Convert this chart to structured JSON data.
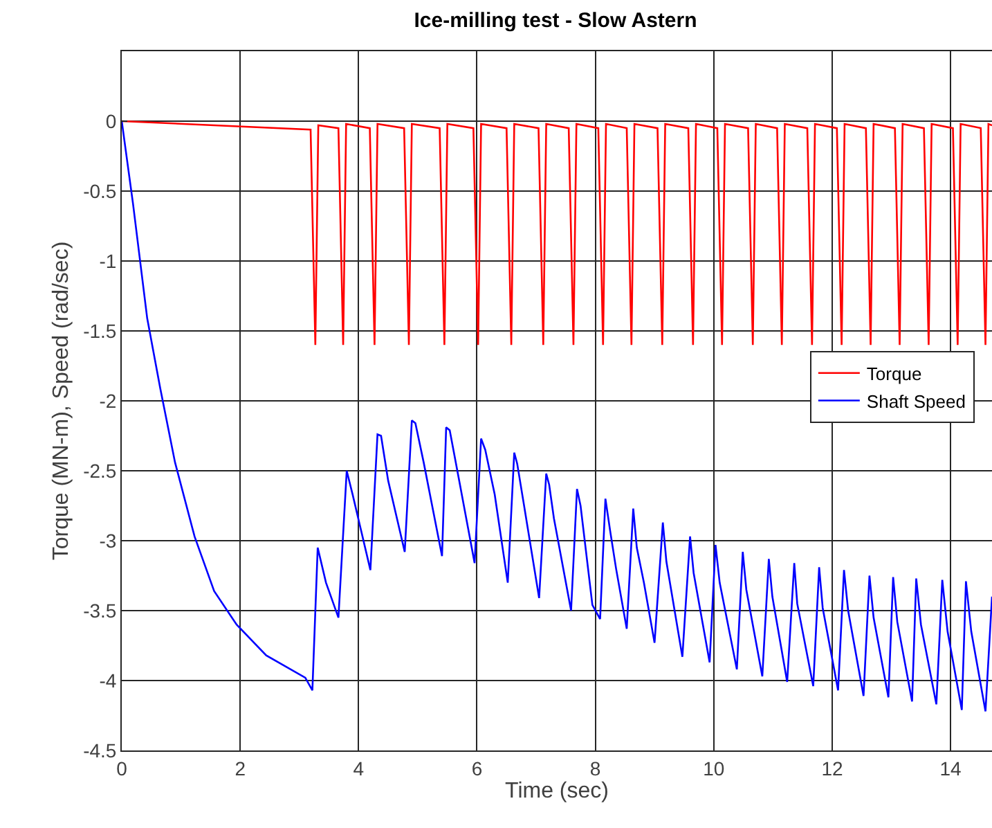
{
  "chart_data": {
    "type": "line",
    "title": "Ice-milling test - Slow Astern",
    "xlabel": "Time (sec)",
    "ylabel": "Torque (MN-m), Speed (rad/sec)",
    "xlim": [
      0,
      14.7
    ],
    "ylim": [
      -4.5,
      0.5
    ],
    "xticks": [
      0,
      2,
      4,
      6,
      8,
      10,
      12,
      14
    ],
    "yticks": [
      -4.5,
      -4,
      -3.5,
      -3,
      -2.5,
      -2,
      -1.5,
      -1,
      -0.5,
      0
    ],
    "grid": true,
    "legend": "right",
    "line_style": "solid",
    "series": [
      {
        "name": "Torque",
        "color": "#ff0000",
        "x": [
          0,
          3.19,
          3.27,
          3.32,
          3.66,
          3.74,
          3.79,
          4.19,
          4.27,
          4.32,
          4.77,
          4.85,
          4.9,
          5.37,
          5.45,
          5.5,
          5.94,
          6.02,
          6.07,
          6.5,
          6.58,
          6.63,
          7.04,
          7.12,
          7.17,
          7.55,
          7.63,
          7.68,
          8.05,
          8.13,
          8.18,
          8.53,
          8.61,
          8.66,
          9.05,
          9.13,
          9.18,
          9.57,
          9.65,
          9.7,
          10.06,
          10.14,
          10.19,
          10.58,
          10.66,
          10.71,
          11.07,
          11.15,
          11.2,
          11.58,
          11.66,
          11.71,
          12.08,
          12.16,
          12.21,
          12.57,
          12.65,
          12.7,
          13.06,
          13.14,
          13.19,
          13.55,
          13.63,
          13.68,
          14.04,
          14.12,
          14.17,
          14.51,
          14.59,
          14.64,
          14.7
        ],
        "values": [
          0,
          -0.06,
          -1.6,
          -0.03,
          -0.05,
          -1.6,
          -0.02,
          -0.05,
          -1.6,
          -0.02,
          -0.05,
          -1.6,
          -0.02,
          -0.05,
          -1.6,
          -0.02,
          -0.05,
          -1.6,
          -0.02,
          -0.05,
          -1.6,
          -0.02,
          -0.05,
          -1.6,
          -0.02,
          -0.05,
          -1.6,
          -0.02,
          -0.05,
          -1.6,
          -0.02,
          -0.05,
          -1.6,
          -0.02,
          -0.05,
          -1.6,
          -0.02,
          -0.05,
          -1.6,
          -0.02,
          -0.05,
          -1.6,
          -0.02,
          -0.05,
          -1.6,
          -0.02,
          -0.05,
          -1.6,
          -0.02,
          -0.05,
          -1.6,
          -0.02,
          -0.05,
          -1.6,
          -0.02,
          -0.05,
          -1.6,
          -0.02,
          -0.05,
          -1.6,
          -0.02,
          -0.05,
          -1.6,
          -0.02,
          -0.05,
          -1.6,
          -0.02,
          -0.05,
          -1.6,
          -0.02,
          -0.03
        ]
      },
      {
        "name": "Shaft Speed",
        "color": "#0000ff",
        "x": [
          0,
          0.19,
          0.43,
          0.65,
          0.9,
          1.23,
          1.56,
          1.94,
          2.44,
          3.1,
          3.22,
          3.31,
          3.45,
          3.66,
          3.8,
          3.9,
          4.0,
          4.2,
          4.32,
          4.38,
          4.5,
          4.78,
          4.9,
          4.96,
          5.1,
          5.41,
          5.48,
          5.54,
          5.7,
          5.96,
          6.07,
          6.14,
          6.3,
          6.52,
          6.63,
          6.68,
          6.8,
          7.05,
          7.17,
          7.22,
          7.3,
          7.59,
          7.69,
          7.75,
          7.95,
          8.08,
          8.17,
          8.25,
          8.35,
          8.53,
          8.64,
          8.7,
          8.82,
          9.0,
          9.14,
          9.2,
          9.47,
          9.6,
          9.66,
          9.93,
          10.03,
          10.1,
          10.39,
          10.49,
          10.55,
          10.82,
          10.93,
          10.99,
          11.24,
          11.36,
          11.41,
          11.68,
          11.78,
          11.84,
          12.1,
          12.2,
          12.27,
          12.53,
          12.63,
          12.7,
          12.95,
          13.03,
          13.1,
          13.35,
          13.42,
          13.5,
          13.76,
          13.86,
          13.95,
          14.19,
          14.26,
          14.35,
          14.59,
          14.7
        ],
        "values": [
          0,
          -0.59,
          -1.41,
          -1.91,
          -2.44,
          -2.97,
          -3.36,
          -3.6,
          -3.82,
          -3.98,
          -4.07,
          -3.05,
          -3.3,
          -3.55,
          -2.5,
          -2.67,
          -2.85,
          -3.21,
          -2.24,
          -2.25,
          -2.57,
          -3.08,
          -2.14,
          -2.16,
          -2.44,
          -3.11,
          -2.19,
          -2.21,
          -2.57,
          -3.16,
          -2.27,
          -2.35,
          -2.67,
          -3.3,
          -2.37,
          -2.45,
          -2.76,
          -3.41,
          -2.52,
          -2.6,
          -2.84,
          -3.5,
          -2.63,
          -2.75,
          -3.46,
          -3.56,
          -2.7,
          -2.93,
          -3.2,
          -3.63,
          -2.77,
          -3.05,
          -3.3,
          -3.73,
          -2.87,
          -3.15,
          -3.83,
          -2.97,
          -3.23,
          -3.87,
          -3.03,
          -3.3,
          -3.92,
          -3.08,
          -3.35,
          -3.97,
          -3.13,
          -3.4,
          -4.01,
          -3.16,
          -3.45,
          -4.04,
          -3.19,
          -3.48,
          -4.07,
          -3.21,
          -3.5,
          -4.11,
          -3.25,
          -3.55,
          -4.12,
          -3.26,
          -3.58,
          -4.15,
          -3.27,
          -3.6,
          -4.17,
          -3.28,
          -3.65,
          -4.21,
          -3.29,
          -3.65,
          -4.22,
          -3.4
        ]
      }
    ]
  }
}
